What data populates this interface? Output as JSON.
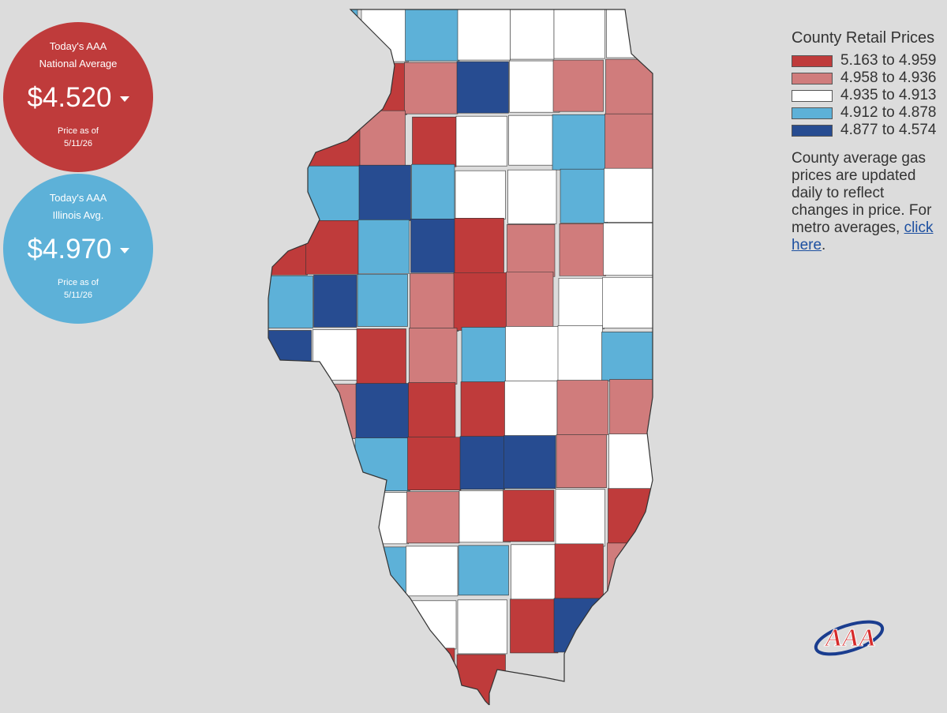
{
  "national": {
    "line1": "Today's AAA",
    "line2": "National Average",
    "price": "$4.520",
    "asof_label": "Price as of",
    "asof_date": "5/11/26",
    "trend": "down"
  },
  "state": {
    "line1": "Today's AAA",
    "line2": "Illinois Avg.",
    "price": "$4.970",
    "asof_label": "Price as of",
    "asof_date": "5/11/26",
    "trend": "down"
  },
  "legend": {
    "title": "County Retail Prices",
    "items": [
      {
        "label": "5.163 to 4.959",
        "color": "#bf3b3b"
      },
      {
        "label": "4.958 to 4.936",
        "color": "#d07c7c"
      },
      {
        "label": "4.935 to 4.913",
        "color": "#ffffff"
      },
      {
        "label": "4.912 to 4.878",
        "color": "#5db1d8"
      },
      {
        "label": "4.877 to 4.574",
        "color": "#274c91"
      }
    ],
    "description": "County average gas prices are updated daily to reflect changes in price. For metro averages, ",
    "link_text": "click here",
    "period": "."
  },
  "map": {
    "state": "Illinois",
    "counties_by_tier": [
      1,
      3,
      2,
      3,
      2,
      2,
      2,
      2,
      0,
      0,
      0,
      1,
      4,
      2,
      1,
      1,
      1,
      0,
      1,
      0,
      2,
      2,
      3,
      1,
      0,
      3,
      4,
      3,
      2,
      2,
      3,
      2,
      0,
      0,
      3,
      4,
      0,
      1,
      1,
      2,
      3,
      4,
      3,
      1,
      0,
      1,
      2,
      2,
      4,
      2,
      0,
      1,
      3,
      2,
      2,
      3,
      2,
      1,
      4,
      0,
      0,
      2,
      1,
      1,
      0,
      2,
      3,
      0,
      4,
      4,
      1,
      2,
      1,
      3,
      2,
      1,
      2,
      0,
      2,
      0,
      0,
      0,
      3,
      2,
      3,
      2,
      0,
      1,
      1,
      1,
      0,
      2,
      2,
      0,
      4,
      4,
      0,
      0,
      2,
      0,
      0
    ]
  },
  "logo": {
    "text": "AAA"
  }
}
